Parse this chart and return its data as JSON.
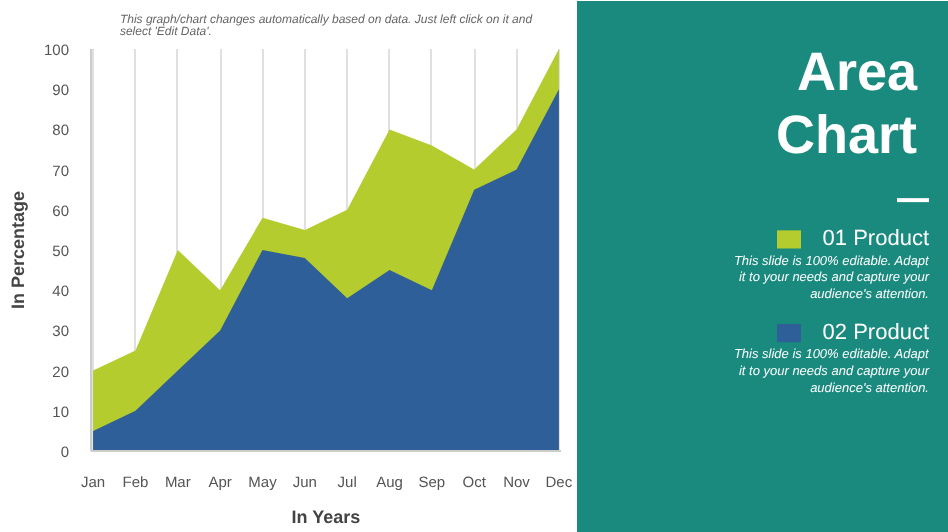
{
  "chart_data": {
    "type": "area",
    "title": "Area Chart",
    "xlabel": "In Years",
    "ylabel": "In Percentage",
    "categories": [
      "Jan",
      "Feb",
      "Mar",
      "Apr",
      "May",
      "Jun",
      "Jul",
      "Aug",
      "Sep",
      "Oct",
      "Nov",
      "Dec"
    ],
    "series": [
      {
        "name": "01 Product",
        "color": "#b5cc2e",
        "values": [
          20,
          25,
          50,
          40,
          58,
          55,
          60,
          80,
          76,
          70,
          80,
          100
        ]
      },
      {
        "name": "02 Product",
        "color": "#2f5f98",
        "values": [
          5,
          10,
          20,
          30,
          50,
          48,
          38,
          45,
          40,
          65,
          70,
          90
        ]
      }
    ],
    "ylim": [
      0,
      100
    ],
    "yticks": [
      0,
      10,
      20,
      30,
      40,
      50,
      60,
      70,
      80,
      90,
      100
    ],
    "grid": "x",
    "legend": "right",
    "annotations": [
      "This graph/chart changes automatically based on data. Just left click on it and select 'Edit Data'.",
      "This slide is 100% editable. Adapt it to your needs and capture your audience's attention.",
      "This slide is 100% editable. Adapt it to your needs and capture your audience's attention."
    ]
  }
}
